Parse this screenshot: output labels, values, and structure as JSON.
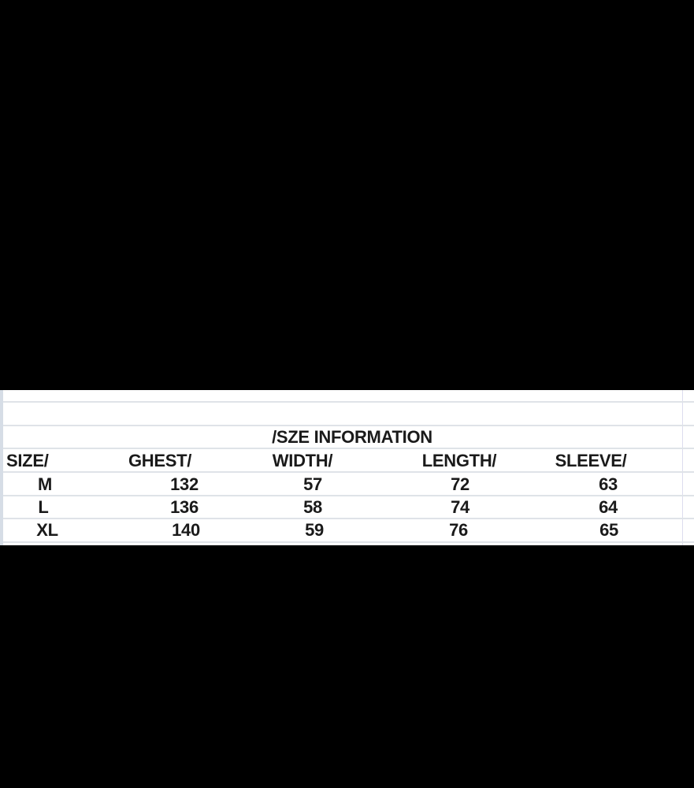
{
  "title": "/SZE INFORMATION",
  "table": {
    "headers": [
      "SIZE/",
      "GHEST/",
      "WIDTH/",
      "LENGTH/",
      "SLEEVE/"
    ],
    "rows": [
      [
        "M",
        "132",
        "57",
        "72",
        "63"
      ],
      [
        "L",
        "136",
        "58",
        "74",
        "64"
      ],
      [
        "XL",
        "140",
        "59",
        "76",
        "65"
      ]
    ]
  }
}
